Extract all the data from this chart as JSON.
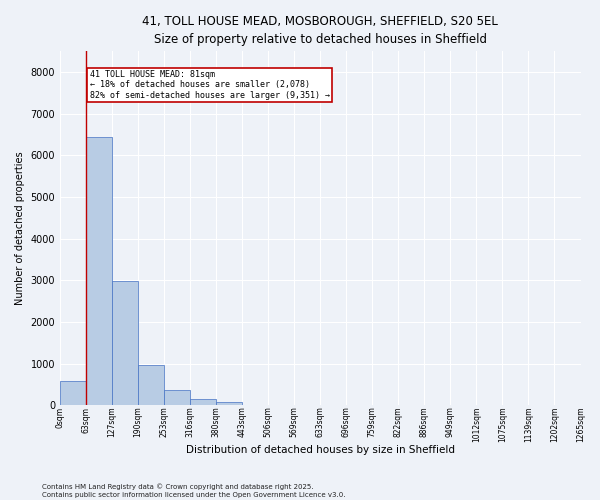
{
  "title_line1": "41, TOLL HOUSE MEAD, MOSBOROUGH, SHEFFIELD, S20 5EL",
  "title_line2": "Size of property relative to detached houses in Sheffield",
  "xlabel": "Distribution of detached houses by size in Sheffield",
  "ylabel": "Number of detached properties",
  "bar_values": [
    580,
    6450,
    2980,
    970,
    360,
    155,
    70,
    0,
    0,
    0,
    0,
    0,
    0,
    0,
    0,
    0,
    0,
    0,
    0,
    0
  ],
  "bin_labels": [
    "0sqm",
    "63sqm",
    "127sqm",
    "190sqm",
    "253sqm",
    "316sqm",
    "380sqm",
    "443sqm",
    "506sqm",
    "569sqm",
    "633sqm",
    "696sqm",
    "759sqm",
    "822sqm",
    "886sqm",
    "949sqm",
    "1012sqm",
    "1075sqm",
    "1139sqm",
    "1202sqm",
    "1265sqm"
  ],
  "bar_color": "#b8cce4",
  "bar_edge_color": "#4472c4",
  "background_color": "#EEF2F8",
  "grid_color": "#ffffff",
  "vline_x": 1,
  "vline_color": "#c00000",
  "annotation_text": "41 TOLL HOUSE MEAD: 81sqm\n← 18% of detached houses are smaller (2,078)\n82% of semi-detached houses are larger (9,351) →",
  "annotation_box_color": "#c00000",
  "ylim": [
    0,
    8500
  ],
  "yticks": [
    0,
    1000,
    2000,
    3000,
    4000,
    5000,
    6000,
    7000,
    8000
  ],
  "footnote": "Contains HM Land Registry data © Crown copyright and database right 2025.\nContains public sector information licensed under the Open Government Licence v3.0.",
  "fig_width": 6.0,
  "fig_height": 5.0,
  "dpi": 100
}
